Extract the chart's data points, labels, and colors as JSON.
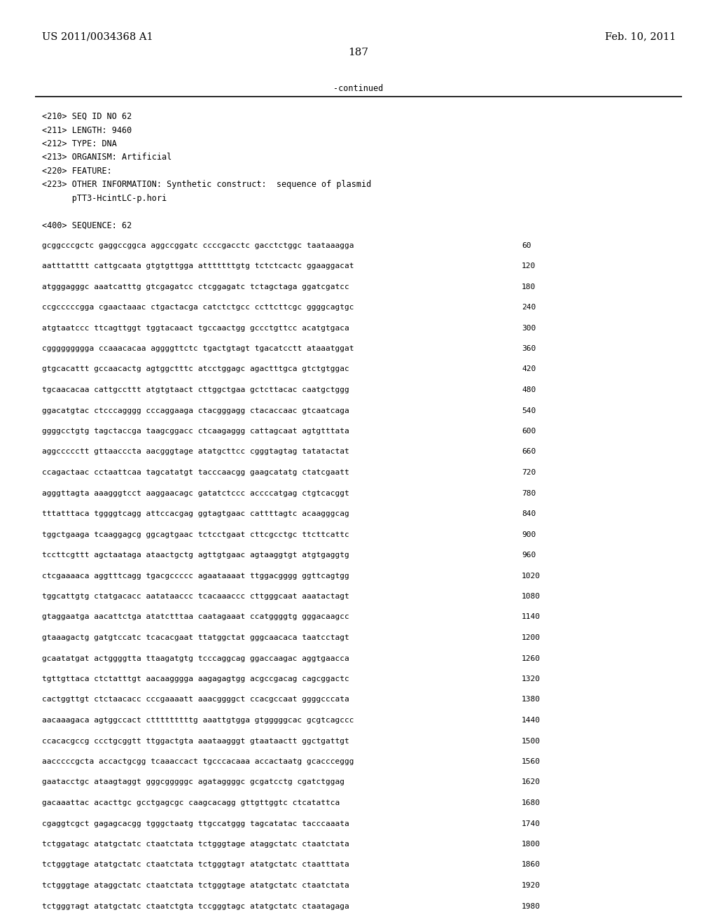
{
  "header_left": "US 2011/0034368 A1",
  "header_right": "Feb. 10, 2011",
  "page_number": "187",
  "continued_text": "-continued",
  "seq_info": [
    "<210> SEQ ID NO 62",
    "<211> LENGTH: 9460",
    "<212> TYPE: DNA",
    "<213> ORGANISM: Artificial",
    "<220> FEATURE:",
    "<223> OTHER INFORMATION: Synthetic construct:  sequence of plasmid",
    "      pTT3-HcintLC-p.hori",
    "",
    "<400> SEQUENCE: 62"
  ],
  "sequence_lines": [
    [
      "gcggcccgctc gaggccggca aggccggatc ccccgacctc gacctctggc taataaagga",
      "60"
    ],
    [
      "aatttatttt cattgcaata gtgtgttgga atttttttgtg tctctcactc ggaaggacat",
      "120"
    ],
    [
      "atgggagggc aaatcatttg gtcgagatcc ctcggagatc tctagctaga ggatcgatcc",
      "180"
    ],
    [
      "ccgcccccgga cgaactaaac ctgactacga catctctgcc ccttcttcgc ggggcagtgc",
      "240"
    ],
    [
      "atgtaatccc ttcagttggt tggtacaact tgccaactgg gccctgttcc acatgtgaca",
      "300"
    ],
    [
      "cggggggggga ccaaacacaa aggggttctc tgactgtagt tgacatcctt ataaatggat",
      "360"
    ],
    [
      "gtgcacattt gccaacactg agtggctttc atcctggagc agactttgca gtctgtggac",
      "420"
    ],
    [
      "tgcaacacaa cattgccttt atgtgtaact cttggctgaa gctcttacac caatgctggg",
      "480"
    ],
    [
      "ggacatgtac ctcccagggg cccaggaaga ctacgggagg ctacaccaac gtcaatcaga",
      "540"
    ],
    [
      "ggggcctgtg tagctaccga taagcggacc ctcaagaggg cattagcaat agtgtttata",
      "600"
    ],
    [
      "aggccccctt gttaacccta aacgggtage atatgcttcc cgggtagtag tatatactat",
      "660"
    ],
    [
      "ccagactaac cctaattcaa tagcatatgt tacccaacgg gaagcatatg ctatcgaatt",
      "720"
    ],
    [
      "agggttagta aaagggtcct aaggaacagc gatatctccc accccatgag ctgtcacggt",
      "780"
    ],
    [
      "tttatttaca tggggtcagg attccacgag ggtagtgaac cattttagtc acaagggcag",
      "840"
    ],
    [
      "tggctgaaga tcaaggagcg ggcagtgaac tctcctgaat cttcgcctgc ttcttcattc",
      "900"
    ],
    [
      "tccttcgttt agctaataga ataactgctg agttgtgaac agtaaggtgt atgtgaggtg",
      "960"
    ],
    [
      "ctcgaaaaca aggtttcagg tgacgccccc agaataaaat ttggacgggg ggttcagtgg",
      "1020"
    ],
    [
      "tggcattgtg ctatgacacc aatataaccc tcacaaaccc cttgggcaat aaatactagt",
      "1080"
    ],
    [
      "gtaggaatga aacattctga atatctttaa caatagaaat ccatggggtg gggacaagcc",
      "1140"
    ],
    [
      "gtaaagactg gatgtccatc tcacacgaat ttatggctat gggcaacaca taatcctagt",
      "1200"
    ],
    [
      "gcaatatgat actggggtta ttaagatgtg tcccaggcag ggaccaagac aggtgaacca",
      "1260"
    ],
    [
      "tgttgttaca ctctatttgt aacaagggga aagagagtgg acgccgacag cagcggactc",
      "1320"
    ],
    [
      "cactggttgt ctctaacacc cccgaaaatt aaacggggct ccacgccaat ggggcccata",
      "1380"
    ],
    [
      "aacaaagaca agtggccact ctttttttttg aaattgtgga gtgggggcac gcgtcagccc",
      "1440"
    ],
    [
      "ccacacgccg ccctgcggtt ttggactgta aaataagggt gtaataactt ggctgattgt",
      "1500"
    ],
    [
      "aacccccgcta accactgcgg tcaaaccact tgcccacaaa accactaatg gcaccceggg",
      "1560"
    ],
    [
      "gaatacctgc ataagtaggt gggcgggggc agataggggc gcgatcctg cgatctggag",
      "1620"
    ],
    [
      "gacaaattac acacttgc gcctgagcgc caagcacagg gttgttggtc ctcatattca",
      "1680"
    ],
    [
      "cgaggtcgct gagagcacgg tgggctaatg ttgccatggg tagcatatac tacccaaata",
      "1740"
    ],
    [
      "tctggatagc atatgctatc ctaatctata tctgggtage ataggctatc ctaatctata",
      "1800"
    ],
    [
      "tctgggtage atatgctatc ctaatctata tctgggtagт atatgctatc ctaatttata",
      "1860"
    ],
    [
      "tctgggtage ataggctatc ctaatctata tctgggtage atatgctatc ctaatctata",
      "1920"
    ],
    [
      "tctgggтаgt atatgctatc ctaatctgta tccgggtagc atatgctatc ctaatagaga",
      "1980"
    ]
  ],
  "background_color": "#ffffff",
  "text_color": "#000000",
  "font_size_header": 10.5,
  "font_size_body": 8.5,
  "font_size_page": 11,
  "font_size_seq": 8.0
}
